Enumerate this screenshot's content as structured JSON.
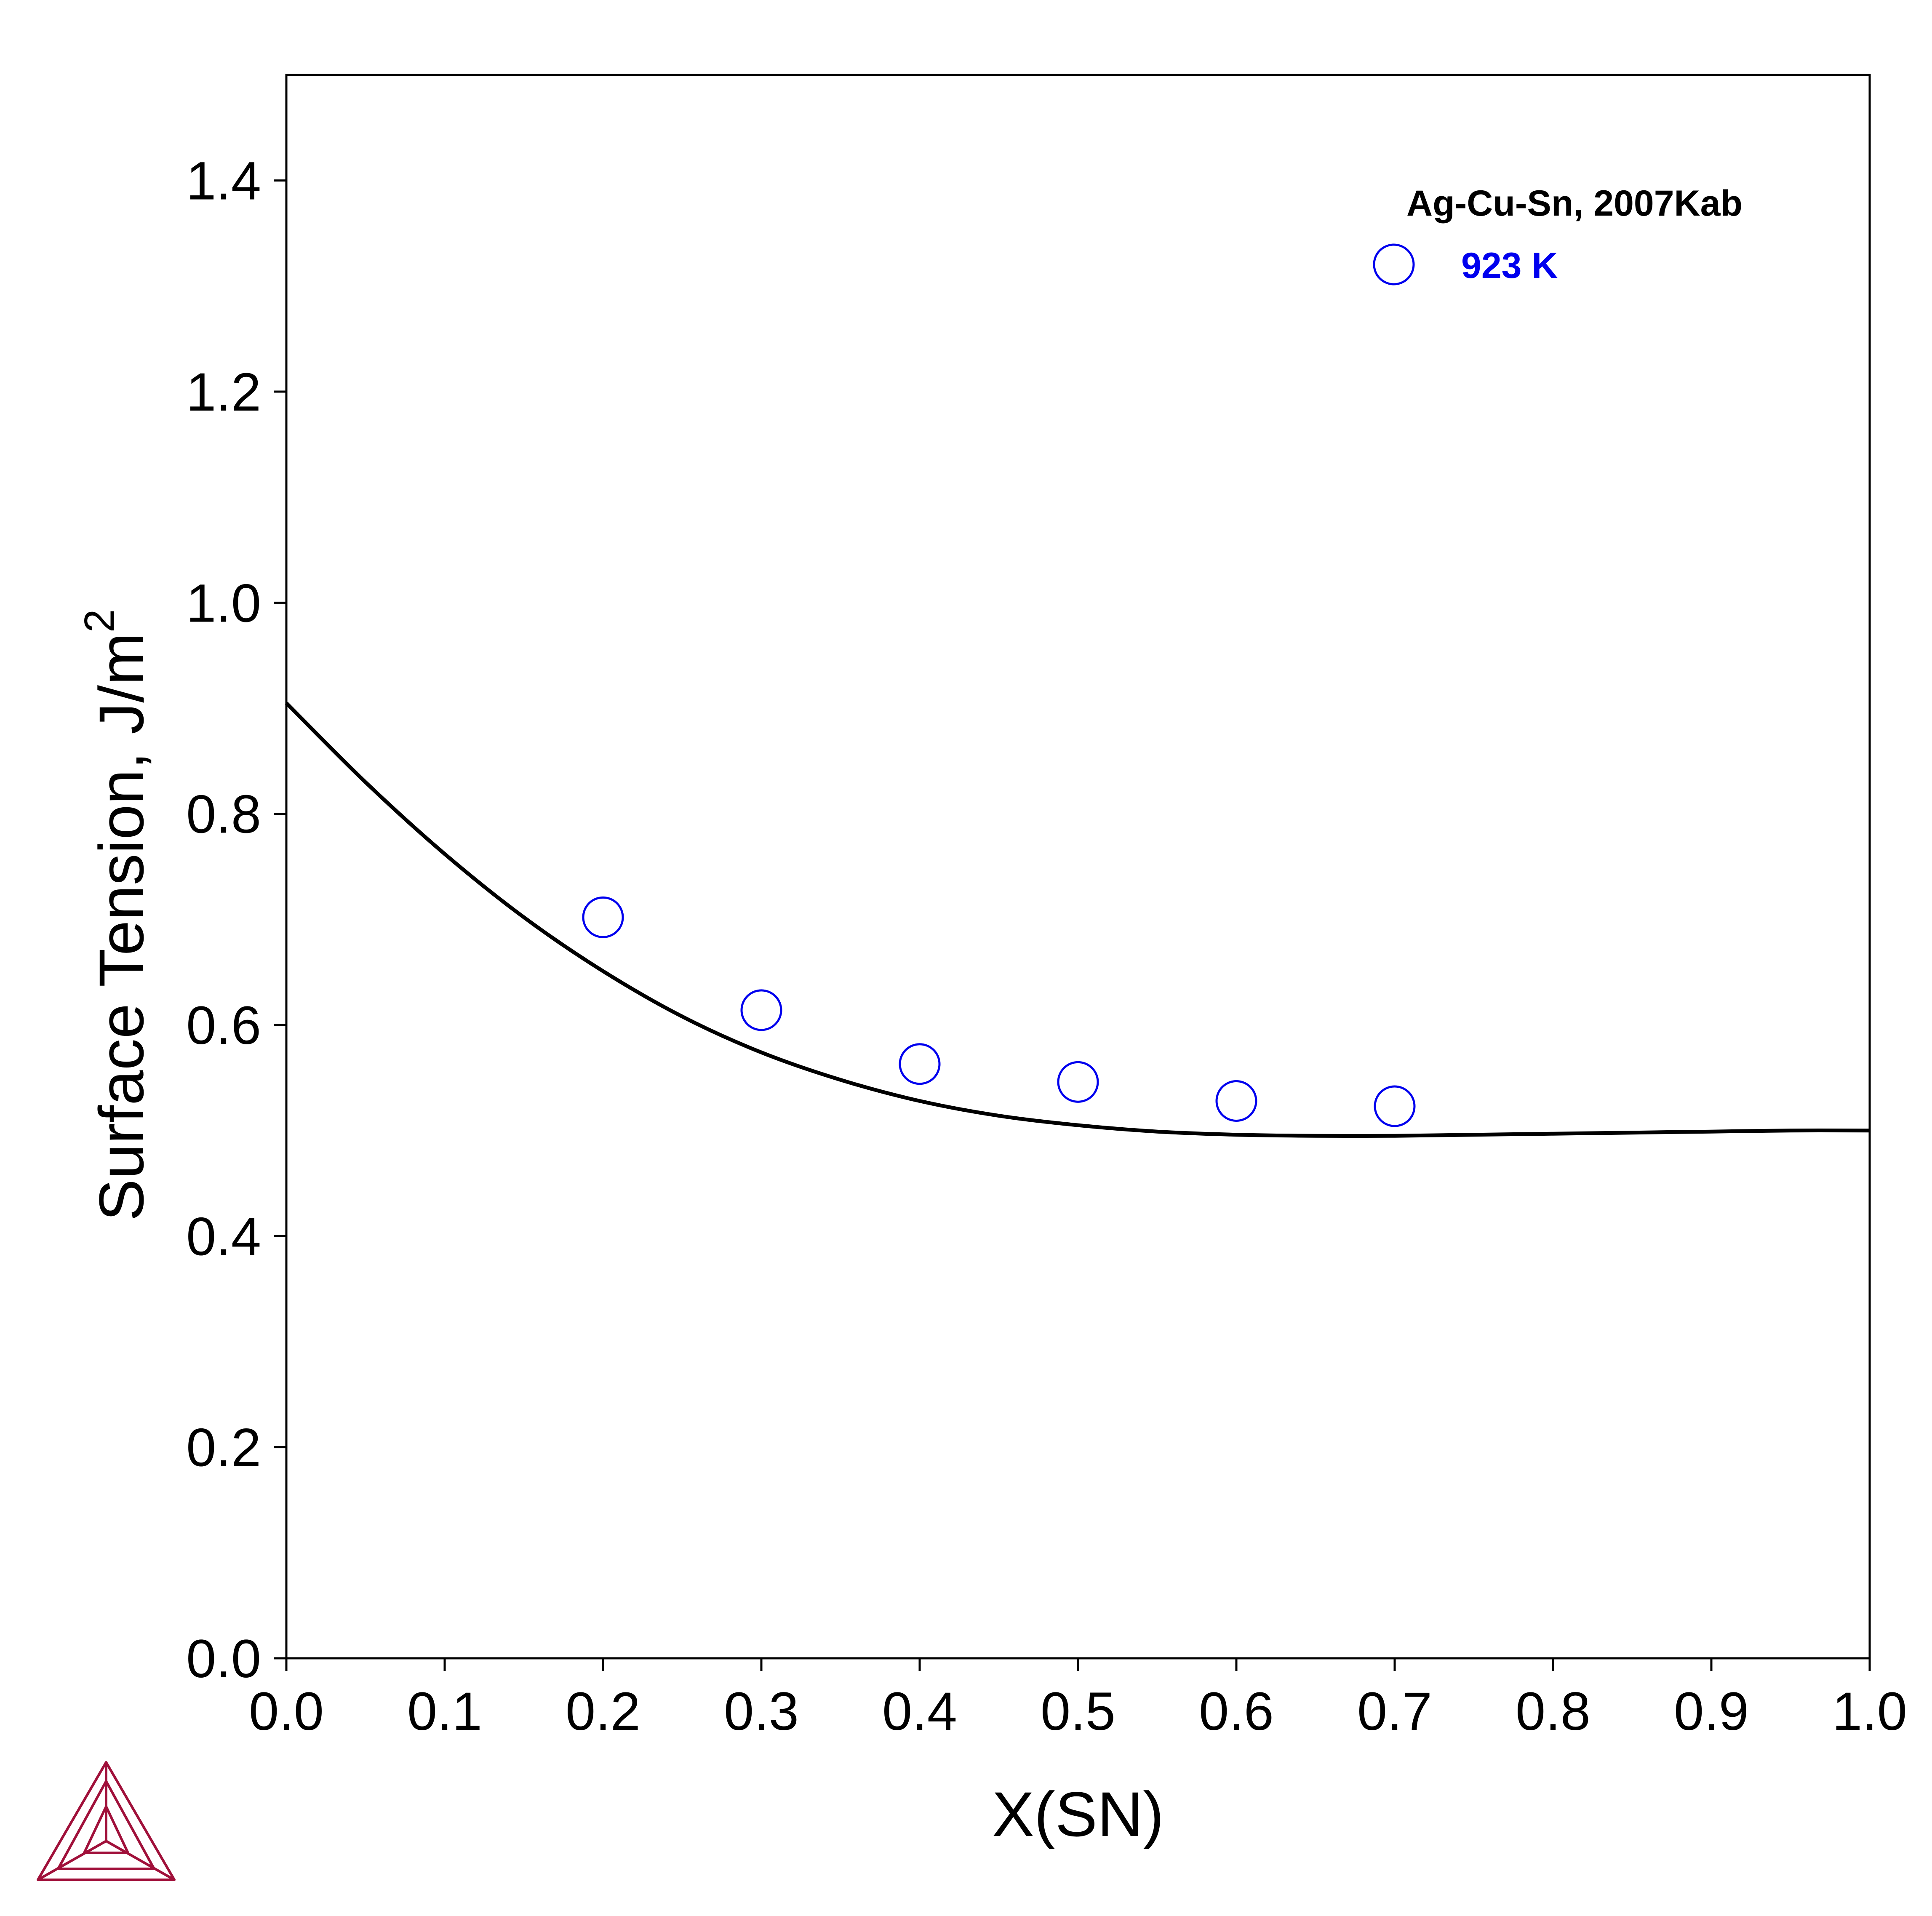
{
  "chart_data": {
    "type": "line",
    "xlabel": "X(SN)",
    "ylabel": "Surface Tension, J/m",
    "ylabel_superscript": "2",
    "xlim": [
      0.0,
      1.0
    ],
    "ylim": [
      0.0,
      1.5
    ],
    "x_ticks": [
      "0.0",
      "0.1",
      "0.2",
      "0.3",
      "0.4",
      "0.5",
      "0.6",
      "0.7",
      "0.8",
      "0.9",
      "1.0"
    ],
    "y_ticks": [
      "0.0",
      "0.2",
      "0.4",
      "0.6",
      "0.8",
      "1.0",
      "1.2",
      "1.4"
    ],
    "grid": false,
    "legend_position": "top-right",
    "series": [
      {
        "type": "line",
        "color": "#000000",
        "x": [
          0.0,
          0.05,
          0.1,
          0.15,
          0.2,
          0.25,
          0.3,
          0.35,
          0.4,
          0.45,
          0.5,
          0.55,
          0.6,
          0.65,
          0.7,
          0.75,
          0.8,
          0.85,
          0.9,
          0.95,
          1.0
        ],
        "y": [
          0.905,
          0.83,
          0.762,
          0.702,
          0.651,
          0.608,
          0.574,
          0.548,
          0.528,
          0.514,
          0.505,
          0.499,
          0.496,
          0.495,
          0.495,
          0.496,
          0.497,
          0.498,
          0.499,
          0.5,
          0.5
        ]
      },
      {
        "type": "scatter",
        "marker": "open-circle",
        "color": "#0000ee",
        "name": "923 K",
        "x": [
          0.2,
          0.3,
          0.4,
          0.5,
          0.6,
          0.7
        ],
        "y": [
          0.702,
          0.614,
          0.563,
          0.546,
          0.528,
          0.523
        ]
      }
    ],
    "legend": {
      "title": "Ag-Cu-Sn, 2007Kab",
      "entries": [
        {
          "label": "923 K",
          "color": "#0000ee",
          "marker": "open-circle"
        }
      ]
    }
  },
  "logo": {
    "name": "thermo-calc-logo-icon",
    "color": "#a0103a"
  }
}
